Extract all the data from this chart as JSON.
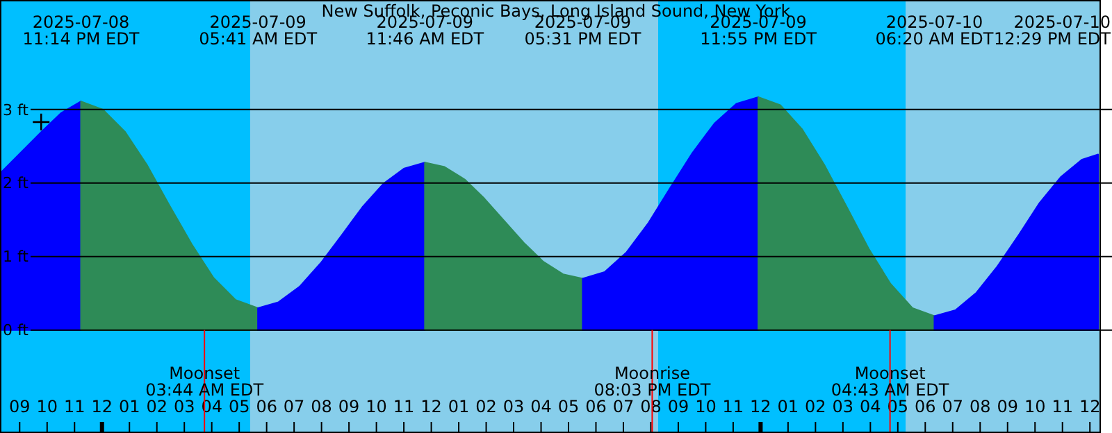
{
  "chart_data": {
    "type": "area",
    "title": "New Suffolk, Peconic Bays, Long Island Sound, New York",
    "series": [
      {
        "color": "#0000ff",
        "x": [
          "2025-07-08T20:17",
          "2025-07-08T21:00",
          "2025-07-08T21:48",
          "2025-07-08T22:30",
          "2025-07-08T23:14"
        ],
        "values": [
          2.13,
          2.4,
          2.7,
          2.95,
          3.11
        ]
      },
      {
        "color": "#2e8b57",
        "x": [
          "2025-07-08T23:14",
          "2025-07-09T00:02",
          "2025-07-09T00:50",
          "2025-07-09T01:39",
          "2025-07-09T02:27",
          "2025-07-09T03:16",
          "2025-07-09T04:04",
          "2025-07-09T04:52",
          "2025-07-09T05:41"
        ],
        "values": [
          3.11,
          3.0,
          2.7,
          2.24,
          1.7,
          1.17,
          0.71,
          0.41,
          0.3
        ]
      },
      {
        "color": "#0000ff",
        "x": [
          "2025-07-09T05:41",
          "2025-07-09T06:26",
          "2025-07-09T07:12",
          "2025-07-09T07:58",
          "2025-07-09T08:44",
          "2025-07-09T09:29",
          "2025-07-09T10:15",
          "2025-07-09T11:01",
          "2025-07-09T11:46"
        ],
        "values": [
          0.3,
          0.38,
          0.59,
          0.91,
          1.29,
          1.67,
          1.99,
          2.2,
          2.28
        ]
      },
      {
        "color": "#2e8b57",
        "x": [
          "2025-07-09T11:46",
          "2025-07-09T12:29",
          "2025-07-09T13:13",
          "2025-07-09T13:56",
          "2025-07-09T14:39",
          "2025-07-09T15:22",
          "2025-07-09T16:05",
          "2025-07-09T16:48",
          "2025-07-09T17:31"
        ],
        "values": [
          2.28,
          2.22,
          2.05,
          1.79,
          1.49,
          1.19,
          0.93,
          0.76,
          0.7
        ]
      },
      {
        "color": "#0000ff",
        "x": [
          "2025-07-09T17:31",
          "2025-07-09T18:19",
          "2025-07-09T19:07",
          "2025-07-09T19:55",
          "2025-07-09T20:43",
          "2025-07-09T21:31",
          "2025-07-09T22:19",
          "2025-07-09T23:07",
          "2025-07-09T23:55"
        ],
        "values": [
          0.7,
          0.79,
          1.06,
          1.46,
          1.94,
          2.41,
          2.81,
          3.08,
          3.17
        ]
      },
      {
        "color": "#2e8b57",
        "x": [
          "2025-07-09T23:55",
          "2025-07-10T00:43",
          "2025-07-10T01:31",
          "2025-07-10T02:19",
          "2025-07-10T03:08",
          "2025-07-10T03:56",
          "2025-07-10T04:44",
          "2025-07-10T05:32",
          "2025-07-10T06:20"
        ],
        "values": [
          3.17,
          3.06,
          2.73,
          2.25,
          1.68,
          1.11,
          0.63,
          0.3,
          0.19
        ]
      },
      {
        "color": "#0000ff",
        "x": [
          "2025-07-10T06:20",
          "2025-07-10T07:06",
          "2025-07-10T07:52",
          "2025-07-10T08:38",
          "2025-07-10T09:25",
          "2025-07-10T10:10",
          "2025-07-10T10:56",
          "2025-07-10T11:43",
          "2025-07-10T12:18"
        ],
        "values": [
          0.19,
          0.27,
          0.51,
          0.87,
          1.3,
          1.73,
          2.08,
          2.32,
          2.39
        ]
      },
      {
        "type": "scatter",
        "color": "#000000",
        "marker": "cross",
        "x": [
          "2025-07-08T21:47"
        ],
        "values": [
          2.83
        ]
      }
    ],
    "xlim": [
      "2025-07-08T20:17",
      "2025-07-10T12:24"
    ],
    "xticks": [
      {
        "value": "2025-07-08T21:00",
        "label": "09"
      },
      {
        "value": "2025-07-08T22:00",
        "label": "10"
      },
      {
        "value": "2025-07-08T23:00",
        "label": "11"
      },
      {
        "value": "2025-07-09T00:00",
        "label": "12"
      },
      {
        "value": "2025-07-09T01:00",
        "label": "01"
      },
      {
        "value": "2025-07-09T02:00",
        "label": "02"
      },
      {
        "value": "2025-07-09T03:00",
        "label": "03"
      },
      {
        "value": "2025-07-09T04:00",
        "label": "04"
      },
      {
        "value": "2025-07-09T05:00",
        "label": "05"
      },
      {
        "value": "2025-07-09T06:00",
        "label": "06"
      },
      {
        "value": "2025-07-09T07:00",
        "label": "07"
      },
      {
        "value": "2025-07-09T08:00",
        "label": "08"
      },
      {
        "value": "2025-07-09T09:00",
        "label": "09"
      },
      {
        "value": "2025-07-09T10:00",
        "label": "10"
      },
      {
        "value": "2025-07-09T11:00",
        "label": "11"
      },
      {
        "value": "2025-07-09T12:00",
        "label": "12"
      },
      {
        "value": "2025-07-09T13:00",
        "label": "01"
      },
      {
        "value": "2025-07-09T14:00",
        "label": "02"
      },
      {
        "value": "2025-07-09T15:00",
        "label": "03"
      },
      {
        "value": "2025-07-09T16:00",
        "label": "04"
      },
      {
        "value": "2025-07-09T17:00",
        "label": "05"
      },
      {
        "value": "2025-07-09T18:00",
        "label": "06"
      },
      {
        "value": "2025-07-09T19:00",
        "label": "07"
      },
      {
        "value": "2025-07-09T20:00",
        "label": "08"
      },
      {
        "value": "2025-07-09T21:00",
        "label": "09"
      },
      {
        "value": "2025-07-09T22:00",
        "label": "10"
      },
      {
        "value": "2025-07-09T23:00",
        "label": "11"
      },
      {
        "value": "2025-07-10T00:00",
        "label": "12"
      },
      {
        "value": "2025-07-10T01:00",
        "label": "01"
      },
      {
        "value": "2025-07-10T02:00",
        "label": "02"
      },
      {
        "value": "2025-07-10T03:00",
        "label": "03"
      },
      {
        "value": "2025-07-10T04:00",
        "label": "04"
      },
      {
        "value": "2025-07-10T05:00",
        "label": "05"
      },
      {
        "value": "2025-07-10T06:00",
        "label": "06"
      },
      {
        "value": "2025-07-10T07:00",
        "label": "07"
      },
      {
        "value": "2025-07-10T08:00",
        "label": "08"
      },
      {
        "value": "2025-07-10T09:00",
        "label": "09"
      },
      {
        "value": "2025-07-10T10:00",
        "label": "10"
      },
      {
        "value": "2025-07-10T11:00",
        "label": "11"
      },
      {
        "value": "2025-07-10T12:00",
        "label": "12"
      }
    ],
    "ylim": [
      -1.4,
      4.49
    ],
    "yticks": [
      {
        "value": 0,
        "label": "0 ft"
      },
      {
        "value": 1,
        "label": "1 ft"
      },
      {
        "value": 2,
        "label": "2 ft"
      },
      {
        "value": 3,
        "label": "3 ft"
      }
    ],
    "grid": "y",
    "bands": [
      {
        "axis": "x",
        "from": "2025-07-08T20:17",
        "to": "2025-07-09T05:24",
        "color": "#00bfff"
      },
      {
        "axis": "x",
        "from": "2025-07-09T05:24",
        "to": "2025-07-09T20:16",
        "color": "#87ceeb"
      },
      {
        "axis": "x",
        "from": "2025-07-09T20:16",
        "to": "2025-07-10T05:17",
        "color": "#00bfff"
      },
      {
        "axis": "x",
        "from": "2025-07-10T05:17",
        "to": "2025-07-10T12:24",
        "color": "#87ceeb"
      }
    ],
    "ref_lines": [
      {
        "axis": "x",
        "value": "2025-07-09T03:44",
        "label": "Moonset\n03:44 AM EDT",
        "color": "#ff0000"
      },
      {
        "axis": "x",
        "value": "2025-07-09T20:03",
        "label": "Moonrise\n08:03 PM EDT",
        "color": "#ff0000"
      },
      {
        "axis": "x",
        "value": "2025-07-10T04:43",
        "label": "Moonset\n04:43 AM EDT",
        "color": "#ff0000"
      }
    ],
    "annotations": [
      "2025-07-08\n11:14 PM EDT",
      "2025-07-09\n05:41 AM EDT",
      "2025-07-09\n11:46 AM EDT",
      "2025-07-09\n05:31 PM EDT",
      "2025-07-09\n11:55 PM EDT",
      "2025-07-10\n06:20 AM EDT",
      "2025-07-10\n12:29 PM EDT"
    ]
  }
}
